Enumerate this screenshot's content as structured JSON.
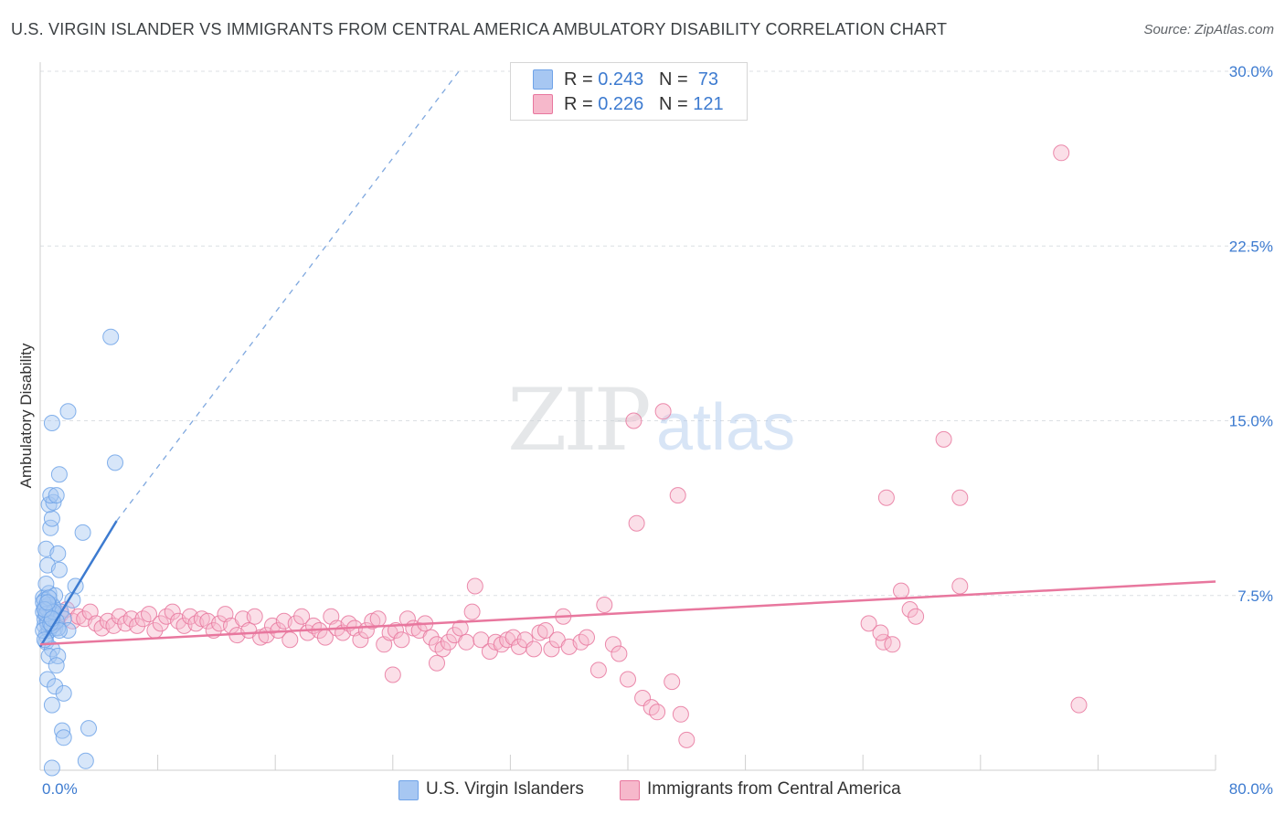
{
  "title": "U.S. VIRGIN ISLANDER VS IMMIGRANTS FROM CENTRAL AMERICA AMBULATORY DISABILITY CORRELATION CHART",
  "source": "Source: ZipAtlas.com",
  "watermark": {
    "zip": "ZIP",
    "atlas": "atlas"
  },
  "legend_top": {
    "rows": [
      {
        "r_label": "R = ",
        "r_value": "0.243",
        "n_label": "N = ",
        "n_value": "73",
        "color": "#a7c7f2"
      },
      {
        "r_label": "R = ",
        "r_value": "0.226",
        "n_label": "N = ",
        "n_value": "121",
        "color": "#f6b8cb"
      }
    ]
  },
  "legend_bottom": [
    {
      "label": "U.S. Virgin Islanders",
      "color": "#a7c7f2"
    },
    {
      "label": "Immigrants from Central America",
      "color": "#f6b8cb"
    }
  ],
  "chart_data": {
    "type": "scatter",
    "title": "U.S. VIRGIN ISLANDER VS IMMIGRANTS FROM CENTRAL AMERICA AMBULATORY DISABILITY CORRELATION CHART",
    "xlabel": "",
    "ylabel": "Ambulatory Disability",
    "xlim": [
      0,
      80
    ],
    "ylim": [
      0,
      30
    ],
    "x_tick_labels": [
      "0.0%",
      "80.0%"
    ],
    "y_tick_values": [
      7.5,
      15.0,
      22.5,
      30.0
    ],
    "y_tick_labels": [
      "7.5%",
      "15.0%",
      "22.5%",
      "30.0%"
    ],
    "grid": "horizontal dashed",
    "legend_position": "top-center",
    "series": [
      {
        "name": "U.S. Virgin Islanders",
        "color": "#6fa3e8",
        "fill": "#a7c7f2",
        "trend": {
          "x0": 0,
          "y0": 5.3,
          "x1": 5.2,
          "y1": 10.7,
          "dashed_to_x": 28.5,
          "dashed_to_y": 30.0
        },
        "points": [
          [
            0.2,
            7.4
          ],
          [
            0.3,
            7.0
          ],
          [
            0.4,
            6.6
          ],
          [
            0.2,
            6.8
          ],
          [
            0.5,
            7.2
          ],
          [
            0.6,
            7.6
          ],
          [
            0.3,
            6.2
          ],
          [
            0.4,
            5.8
          ],
          [
            0.7,
            6.9
          ],
          [
            0.8,
            7.1
          ],
          [
            0.5,
            6.4
          ],
          [
            0.9,
            6.7
          ],
          [
            1.0,
            6.1
          ],
          [
            0.3,
            7.3
          ],
          [
            0.6,
            6.0
          ],
          [
            0.4,
            8.0
          ],
          [
            0.5,
            8.8
          ],
          [
            0.4,
            9.5
          ],
          [
            1.2,
            9.3
          ],
          [
            1.3,
            8.6
          ],
          [
            0.7,
            10.4
          ],
          [
            0.8,
            10.8
          ],
          [
            0.6,
            11.4
          ],
          [
            0.9,
            11.5
          ],
          [
            0.7,
            11.8
          ],
          [
            1.1,
            11.8
          ],
          [
            1.3,
            12.7
          ],
          [
            2.9,
            10.2
          ],
          [
            2.4,
            7.9
          ],
          [
            2.2,
            7.3
          ],
          [
            1.4,
            6.8
          ],
          [
            1.6,
            6.5
          ],
          [
            1.9,
            6.0
          ],
          [
            1.2,
            6.1
          ],
          [
            0.4,
            5.5
          ],
          [
            0.8,
            5.2
          ],
          [
            0.6,
            4.9
          ],
          [
            1.2,
            4.9
          ],
          [
            1.1,
            4.5
          ],
          [
            0.5,
            3.9
          ],
          [
            1.0,
            3.6
          ],
          [
            0.8,
            2.8
          ],
          [
            1.6,
            3.3
          ],
          [
            1.5,
            1.7
          ],
          [
            1.6,
            1.4
          ],
          [
            3.3,
            1.8
          ],
          [
            3.1,
            0.4
          ],
          [
            0.8,
            0.1
          ],
          [
            0.8,
            14.9
          ],
          [
            1.9,
            15.4
          ],
          [
            4.8,
            18.6
          ],
          [
            5.1,
            13.2
          ],
          [
            0.3,
            6.5
          ],
          [
            0.5,
            6.3
          ],
          [
            0.7,
            6.6
          ],
          [
            0.2,
            6.0
          ],
          [
            0.9,
            7.0
          ],
          [
            1.0,
            7.5
          ],
          [
            0.4,
            7.0
          ],
          [
            0.6,
            7.1
          ],
          [
            0.3,
            5.6
          ],
          [
            0.5,
            6.9
          ],
          [
            0.8,
            6.2
          ],
          [
            0.2,
            7.2
          ],
          [
            0.6,
            7.4
          ],
          [
            1.1,
            6.4
          ],
          [
            0.4,
            6.7
          ],
          [
            0.7,
            6.3
          ],
          [
            0.9,
            6.8
          ],
          [
            0.3,
            6.9
          ],
          [
            0.5,
            7.2
          ],
          [
            0.8,
            6.5
          ],
          [
            1.3,
            6.0
          ]
        ]
      },
      {
        "name": "Immigrants from Central America",
        "color": "#e8779e",
        "fill": "#f6b8cb",
        "trend": {
          "x0": 0,
          "y0": 5.4,
          "x1": 80,
          "y1": 8.1
        },
        "points": [
          [
            0.6,
            6.6
          ],
          [
            1.0,
            6.3
          ],
          [
            1.4,
            6.7
          ],
          [
            1.8,
            6.9
          ],
          [
            2.2,
            6.4
          ],
          [
            2.6,
            6.6
          ],
          [
            3.0,
            6.5
          ],
          [
            3.4,
            6.8
          ],
          [
            3.8,
            6.3
          ],
          [
            4.2,
            6.1
          ],
          [
            4.6,
            6.4
          ],
          [
            5.0,
            6.2
          ],
          [
            5.4,
            6.6
          ],
          [
            5.8,
            6.3
          ],
          [
            6.2,
            6.5
          ],
          [
            6.6,
            6.2
          ],
          [
            7.0,
            6.5
          ],
          [
            7.4,
            6.7
          ],
          [
            7.8,
            6.0
          ],
          [
            8.2,
            6.3
          ],
          [
            8.6,
            6.6
          ],
          [
            9.0,
            6.8
          ],
          [
            9.4,
            6.4
          ],
          [
            9.8,
            6.2
          ],
          [
            10.2,
            6.6
          ],
          [
            10.6,
            6.3
          ],
          [
            11.0,
            6.5
          ],
          [
            11.4,
            6.4
          ],
          [
            11.8,
            6.0
          ],
          [
            12.2,
            6.3
          ],
          [
            12.6,
            6.7
          ],
          [
            13.0,
            6.2
          ],
          [
            13.4,
            5.8
          ],
          [
            13.8,
            6.5
          ],
          [
            14.2,
            6.0
          ],
          [
            14.6,
            6.6
          ],
          [
            15.0,
            5.7
          ],
          [
            15.4,
            5.8
          ],
          [
            15.8,
            6.2
          ],
          [
            16.2,
            6.0
          ],
          [
            16.6,
            6.4
          ],
          [
            17.0,
            5.6
          ],
          [
            17.4,
            6.3
          ],
          [
            17.8,
            6.6
          ],
          [
            18.2,
            5.9
          ],
          [
            18.6,
            6.2
          ],
          [
            19.0,
            6.0
          ],
          [
            19.4,
            5.7
          ],
          [
            19.8,
            6.6
          ],
          [
            20.2,
            6.1
          ],
          [
            20.6,
            5.9
          ],
          [
            21.0,
            6.3
          ],
          [
            21.4,
            6.1
          ],
          [
            21.8,
            5.6
          ],
          [
            22.2,
            6.0
          ],
          [
            22.6,
            6.4
          ],
          [
            23.0,
            6.5
          ],
          [
            23.4,
            5.4
          ],
          [
            23.8,
            5.9
          ],
          [
            24.2,
            6.0
          ],
          [
            24.6,
            5.6
          ],
          [
            25.0,
            6.5
          ],
          [
            25.4,
            6.1
          ],
          [
            25.8,
            6.0
          ],
          [
            26.2,
            6.3
          ],
          [
            26.6,
            5.7
          ],
          [
            27.0,
            5.4
          ],
          [
            27.4,
            5.2
          ],
          [
            27.8,
            5.5
          ],
          [
            28.2,
            5.8
          ],
          [
            28.6,
            6.1
          ],
          [
            29.0,
            5.5
          ],
          [
            29.4,
            6.8
          ],
          [
            30.0,
            5.6
          ],
          [
            30.6,
            5.1
          ],
          [
            31.0,
            5.5
          ],
          [
            31.4,
            5.4
          ],
          [
            31.8,
            5.6
          ],
          [
            32.2,
            5.7
          ],
          [
            32.6,
            5.3
          ],
          [
            33.0,
            5.6
          ],
          [
            33.6,
            5.2
          ],
          [
            34.0,
            5.9
          ],
          [
            34.4,
            6.0
          ],
          [
            34.8,
            5.2
          ],
          [
            35.2,
            5.6
          ],
          [
            35.6,
            6.6
          ],
          [
            36.0,
            5.3
          ],
          [
            36.8,
            5.5
          ],
          [
            37.2,
            5.7
          ],
          [
            38.0,
            4.3
          ],
          [
            39.0,
            5.4
          ],
          [
            39.4,
            5.0
          ],
          [
            40.0,
            3.9
          ],
          [
            40.4,
            15.0
          ],
          [
            41.0,
            3.1
          ],
          [
            41.6,
            2.7
          ],
          [
            42.0,
            2.5
          ],
          [
            42.4,
            15.4
          ],
          [
            43.0,
            3.8
          ],
          [
            43.6,
            2.4
          ],
          [
            44.0,
            1.3
          ],
          [
            38.4,
            7.1
          ],
          [
            29.6,
            7.9
          ],
          [
            27.0,
            4.6
          ],
          [
            24.0,
            4.1
          ],
          [
            40.6,
            10.6
          ],
          [
            43.4,
            11.8
          ],
          [
            57.6,
            11.7
          ],
          [
            62.6,
            11.7
          ],
          [
            58.6,
            7.7
          ],
          [
            59.2,
            6.9
          ],
          [
            62.6,
            7.9
          ],
          [
            59.6,
            6.6
          ],
          [
            57.4,
            5.5
          ],
          [
            56.4,
            6.3
          ],
          [
            57.2,
            5.9
          ],
          [
            58.0,
            5.4
          ],
          [
            69.5,
            26.5
          ],
          [
            61.5,
            14.2
          ],
          [
            70.7,
            2.8
          ]
        ]
      }
    ]
  }
}
